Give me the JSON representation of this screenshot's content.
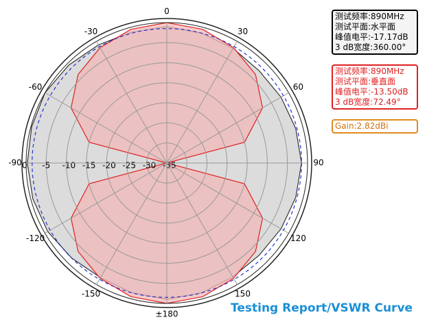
{
  "chart_data": {
    "type": "polar",
    "theta": [
      -180,
      -165,
      -150,
      -135,
      -120,
      -105,
      -90,
      -75,
      -60,
      -45,
      -30,
      -15,
      0,
      15,
      30,
      45,
      60,
      75,
      90,
      105,
      120,
      135,
      150,
      165,
      180
    ],
    "series": [
      {
        "color": "#333333",
        "fill": "#dcdcdc",
        "values": [
          -1,
          -1.5,
          -2,
          -1.5,
          -0.8,
          -0.5,
          -0.3,
          -0.2,
          0,
          -0.5,
          -1,
          -1.2,
          -1,
          -1.5,
          -2,
          -2.5,
          -2.2,
          -1.8,
          -1.5,
          -1.8,
          -2.2,
          -2.5,
          -2.2,
          -1.5,
          -1
        ]
      },
      {
        "color": "#e02020",
        "fill": "#f2b8b8",
        "values": [
          0,
          -0.5,
          -1.8,
          -3.8,
          -7.5,
          -15,
          -35,
          -15,
          -7.5,
          -3.8,
          -1.8,
          -0.5,
          0,
          -0.5,
          -1.8,
          -3.8,
          -7.5,
          -15,
          -35,
          -15,
          -7.5,
          -3.8,
          -1.8,
          -0.5,
          0
        ]
      }
    ],
    "rlim": [
      -35,
      0
    ],
    "rticks": [
      0,
      -5,
      -10,
      -15,
      -20,
      -25,
      -30,
      -35
    ],
    "thetaticks": [
      0,
      30,
      60,
      90,
      120,
      150,
      {
        "value": 180,
        "label": "±180"
      },
      -150,
      -120,
      -90,
      -60,
      -30
    ],
    "ref_level": -1.5,
    "ref_color": "#2233cc",
    "info_boxes": [
      {
        "color": "#000000",
        "lines": [
          "测试频率:890MHz",
          "测试平面:水平面",
          "峰值电平:-17.17dB",
          "3 dB宽度:360.00°"
        ]
      },
      {
        "color": "#e02020",
        "lines": [
          "测试频率:890MHz",
          "测试平面:垂直面",
          "峰值电平:-13.50dB",
          "3 dB宽度:72.49°"
        ]
      },
      {
        "color": "#e08a20",
        "lines": [
          "Gain:2.82dBi"
        ]
      }
    ],
    "footer": "Testing Report/VSWR Curve"
  }
}
